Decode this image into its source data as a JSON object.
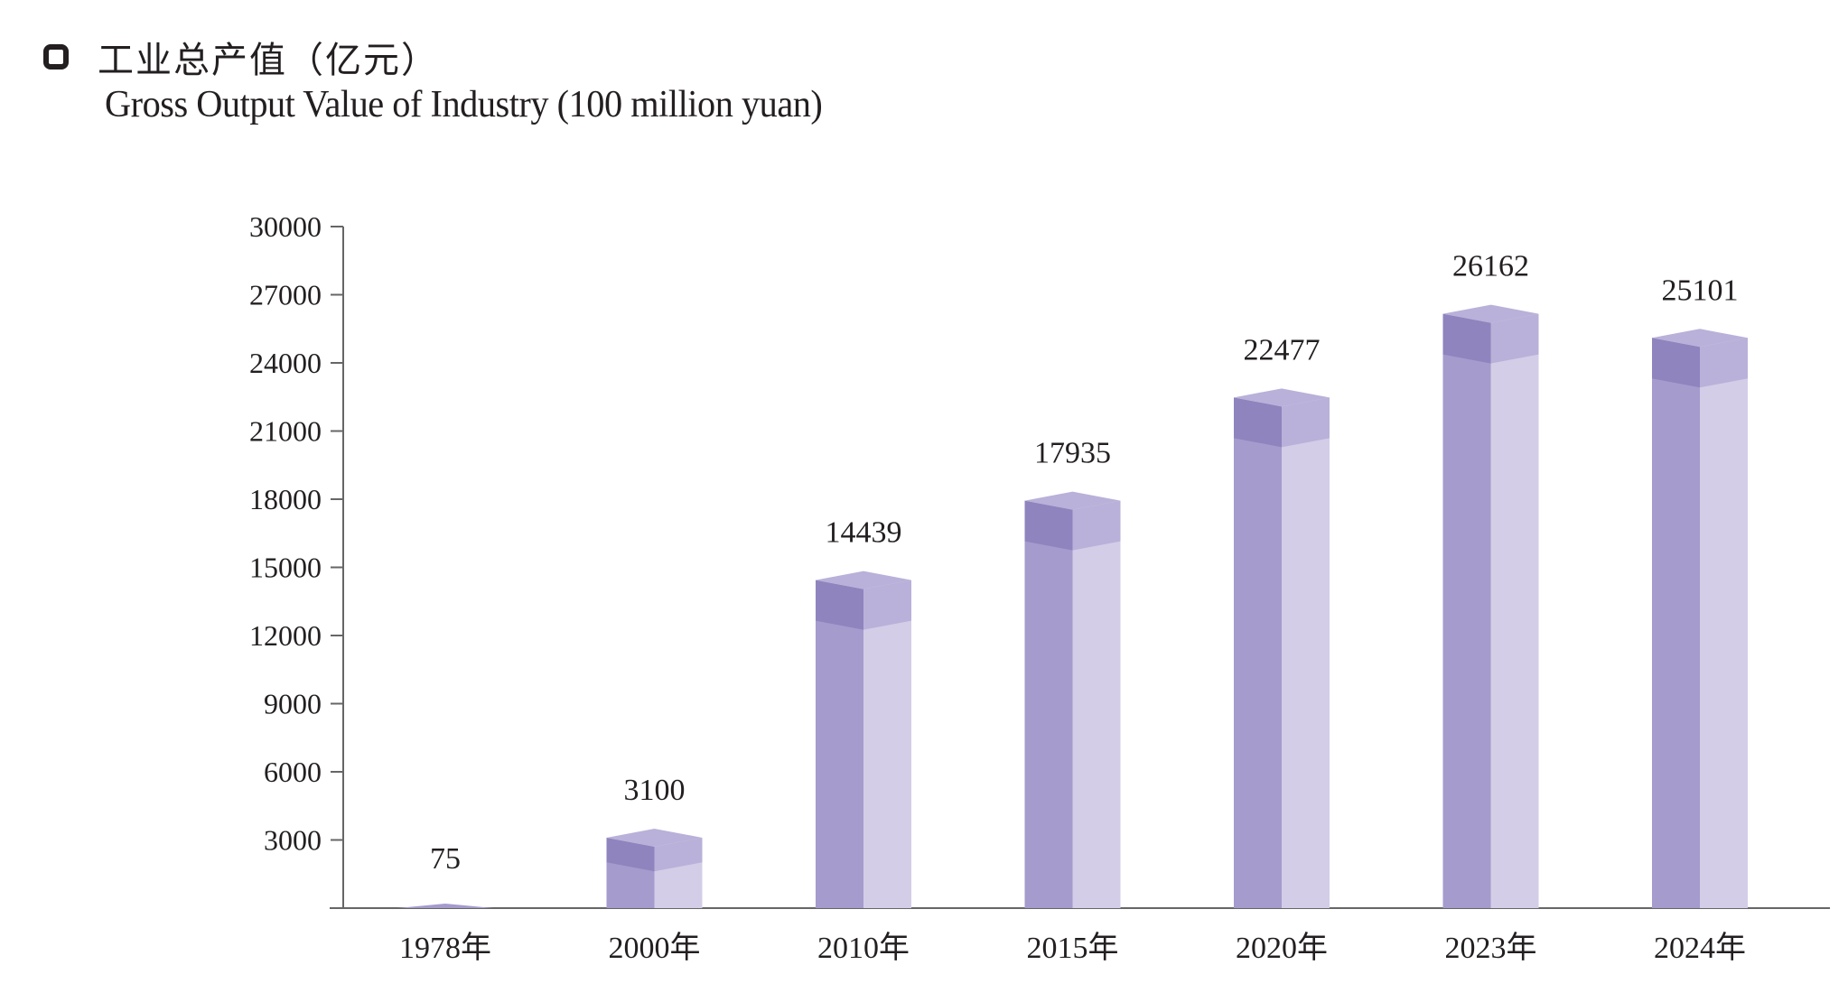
{
  "title_cn": "工业总产值（亿元）",
  "title_en": "Gross Output Value of  Industry (100 million yuan)",
  "colors": {
    "front": "#a59bcc",
    "side": "#d3cde7",
    "top_front": "#b9b1d9",
    "top_side": "#d3cde7",
    "band_front": "#8f84be",
    "band_side": "#b9b1d9",
    "axis": "#666666",
    "text": "#231f20"
  },
  "chart_data": {
    "type": "bar",
    "title": "Gross Output Value of  Industry (100 million yuan)",
    "xlabel": "",
    "ylabel": "",
    "categories": [
      "1978年",
      "2000年",
      "2010年",
      "2015年",
      "2020年",
      "2023年",
      "2024年"
    ],
    "values": [
      75,
      3100,
      14439,
      17935,
      22477,
      26162,
      25101
    ],
    "ylim": [
      0,
      30000
    ],
    "yticks": [
      3000,
      6000,
      9000,
      12000,
      15000,
      18000,
      21000,
      24000,
      27000,
      30000
    ],
    "ytick_labels": [
      "3000",
      "6000",
      "9000",
      "12000",
      "15000",
      "18000",
      "21000",
      "24000",
      "27000",
      "30000"
    ],
    "value_labels": [
      "75",
      "3100",
      "14439",
      "17935",
      "22477",
      "26162",
      "25101"
    ],
    "grid": false,
    "style": "3d-column"
  }
}
